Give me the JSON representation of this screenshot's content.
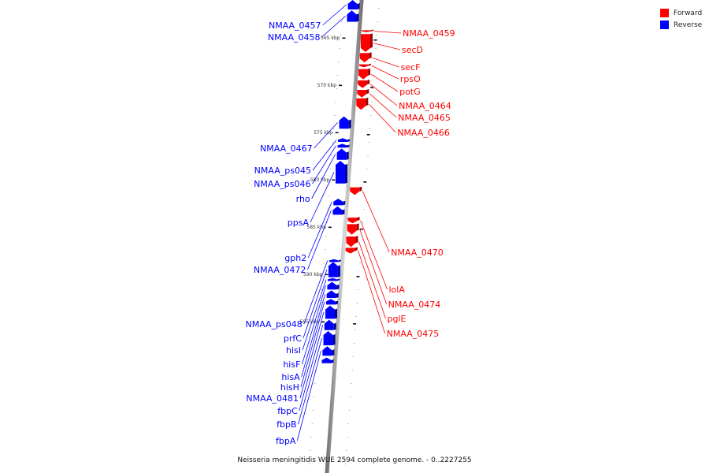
{
  "legend": [
    {
      "label": "Forward",
      "color": "#ff0000"
    },
    {
      "label": "Reverse",
      "color": "#0000ff"
    }
  ],
  "caption": "Neisseria meningitidis WUE 2594 complete genome. - 0..2227255",
  "scale_ticks": [
    {
      "kbp": 565,
      "label": "565 kbp"
    },
    {
      "kbp": 570,
      "label": "570 kbp"
    },
    {
      "kbp": 575,
      "label": "575 kbp"
    },
    {
      "kbp": 580,
      "label": "580 kbp"
    },
    {
      "kbp": 585,
      "label": "585 kbp"
    },
    {
      "kbp": 590,
      "label": "590 kbp"
    },
    {
      "kbp": 595,
      "label": "595 kbp"
    }
  ],
  "genes": {
    "forward": [
      {
        "name": "NMAA_0459",
        "start_kbp": 564.2,
        "end_kbp": 564.4
      },
      {
        "name": "secD",
        "start_kbp": 564.6,
        "end_kbp": 566.5
      },
      {
        "name": "secF",
        "start_kbp": 566.6,
        "end_kbp": 567.6
      },
      {
        "name": "rpsO",
        "start_kbp": 567.8,
        "end_kbp": 568.1
      },
      {
        "name": "potG",
        "start_kbp": 568.3,
        "end_kbp": 569.4
      },
      {
        "name": "NMAA_0464",
        "start_kbp": 569.5,
        "end_kbp": 570.3
      },
      {
        "name": "NMAA_0465",
        "start_kbp": 570.5,
        "end_kbp": 571.3
      },
      {
        "name": "NMAA_0466",
        "start_kbp": 571.4,
        "end_kbp": 572.6
      },
      {
        "name": "NMAA_0470",
        "start_kbp": 580.8,
        "end_kbp": 581.6
      },
      {
        "name": "lolA",
        "start_kbp": 584.0,
        "end_kbp": 584.6
      },
      {
        "name": "NMAA_0474",
        "start_kbp": 584.7,
        "end_kbp": 585.8
      },
      {
        "name": "pglE",
        "start_kbp": 586.0,
        "end_kbp": 587.1
      },
      {
        "name": "NMAA_0475",
        "start_kbp": 587.2,
        "end_kbp": 587.8
      }
    ],
    "reverse": [
      {
        "name": "NMAA_0457",
        "start_kbp": 561.0,
        "end_kbp": 562.0
      },
      {
        "name": "NMAA_0458",
        "start_kbp": 562.1,
        "end_kbp": 563.3
      },
      {
        "name": "NMAA_0467",
        "start_kbp": 573.3,
        "end_kbp": 574.6
      },
      {
        "name": "NMAA_ps045",
        "start_kbp": 575.6,
        "end_kbp": 576.0
      },
      {
        "name": "NMAA_ps046",
        "start_kbp": 576.2,
        "end_kbp": 576.6
      },
      {
        "name": "rho",
        "start_kbp": 576.7,
        "end_kbp": 577.9
      },
      {
        "name": "ppsA",
        "start_kbp": 578.0,
        "end_kbp": 580.4
      },
      {
        "name": "gph2",
        "start_kbp": 582.0,
        "end_kbp": 582.7
      },
      {
        "name": "NMAA_0472",
        "start_kbp": 582.8,
        "end_kbp": 583.7
      },
      {
        "name": "NMAA_ps048",
        "start_kbp": 588.4,
        "end_kbp": 588.7
      },
      {
        "name": "prfC",
        "start_kbp": 588.7,
        "end_kbp": 590.3
      },
      {
        "name": "hisI",
        "start_kbp": 590.4,
        "end_kbp": 590.7
      },
      {
        "name": "hisF",
        "start_kbp": 590.8,
        "end_kbp": 591.6
      },
      {
        "name": "hisA",
        "start_kbp": 591.7,
        "end_kbp": 592.5
      },
      {
        "name": "hisH",
        "start_kbp": 592.6,
        "end_kbp": 593.2
      },
      {
        "name": "NMAA_0481",
        "start_kbp": 593.3,
        "end_kbp": 594.7
      },
      {
        "name": "fbpC",
        "start_kbp": 594.8,
        "end_kbp": 595.9
      },
      {
        "name": "fbpB",
        "start_kbp": 596.0,
        "end_kbp": 597.5
      },
      {
        "name": "fbpA",
        "start_kbp": 597.6,
        "end_kbp": 598.6
      },
      {
        "name": "",
        "start_kbp": 598.8,
        "end_kbp": 599.4
      }
    ]
  }
}
